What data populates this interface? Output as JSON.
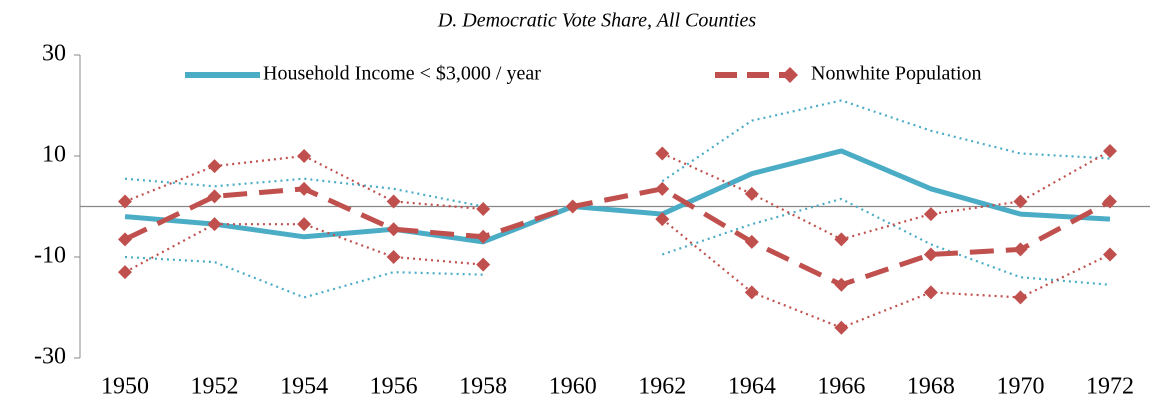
{
  "chart_data": {
    "type": "line",
    "title": "D. Democratic Vote Share, All Counties",
    "categories": [
      "1950",
      "1952",
      "1954",
      "1956",
      "1958",
      "1960",
      "1962",
      "1964",
      "1966",
      "1968",
      "1970",
      "1972"
    ],
    "ylim": [
      -30,
      30
    ],
    "yticks": [
      -30,
      -10,
      10,
      30
    ],
    "zero_line": true,
    "legend": "top",
    "series": [
      {
        "name": "Household Income < $3,000 / year",
        "color": "#4bacc6",
        "style": "solid",
        "values": [
          -2,
          -3.5,
          -6,
          -4.5,
          -7,
          0,
          -1.5,
          6.5,
          11,
          3.5,
          -1.5,
          -2.5
        ]
      },
      {
        "color": "#4bacc6",
        "style": "dotted",
        "values": [
          5.5,
          4,
          5.5,
          3.5,
          0,
          null,
          5,
          17,
          21,
          15,
          10.5,
          9.5
        ]
      },
      {
        "color": "#4bacc6",
        "style": "dotted",
        "values": [
          -10,
          -11,
          -18,
          -13,
          -13.5,
          null,
          -9.5,
          -3.5,
          1.5,
          -7.5,
          -14,
          -15.5
        ]
      },
      {
        "name": "Nonwhite Population",
        "color": "#c0504d",
        "style": "dashed",
        "marker": "diamond",
        "values": [
          -6.5,
          2,
          3.5,
          -4.5,
          -6,
          0,
          3.5,
          -7,
          -15.5,
          -9.5,
          -8.5,
          1
        ]
      },
      {
        "color": "#c0504d",
        "style": "dotted",
        "marker": "diamond",
        "values": [
          1,
          8,
          10,
          1,
          -0.5,
          null,
          10.5,
          2.5,
          -6.5,
          -1.5,
          1,
          11
        ]
      },
      {
        "color": "#c0504d",
        "style": "dotted",
        "marker": "diamond",
        "values": [
          -13,
          -3.5,
          -3.5,
          -10,
          -11.5,
          null,
          -2.5,
          -17,
          -24,
          -17,
          -18,
          -9.5
        ]
      }
    ]
  }
}
